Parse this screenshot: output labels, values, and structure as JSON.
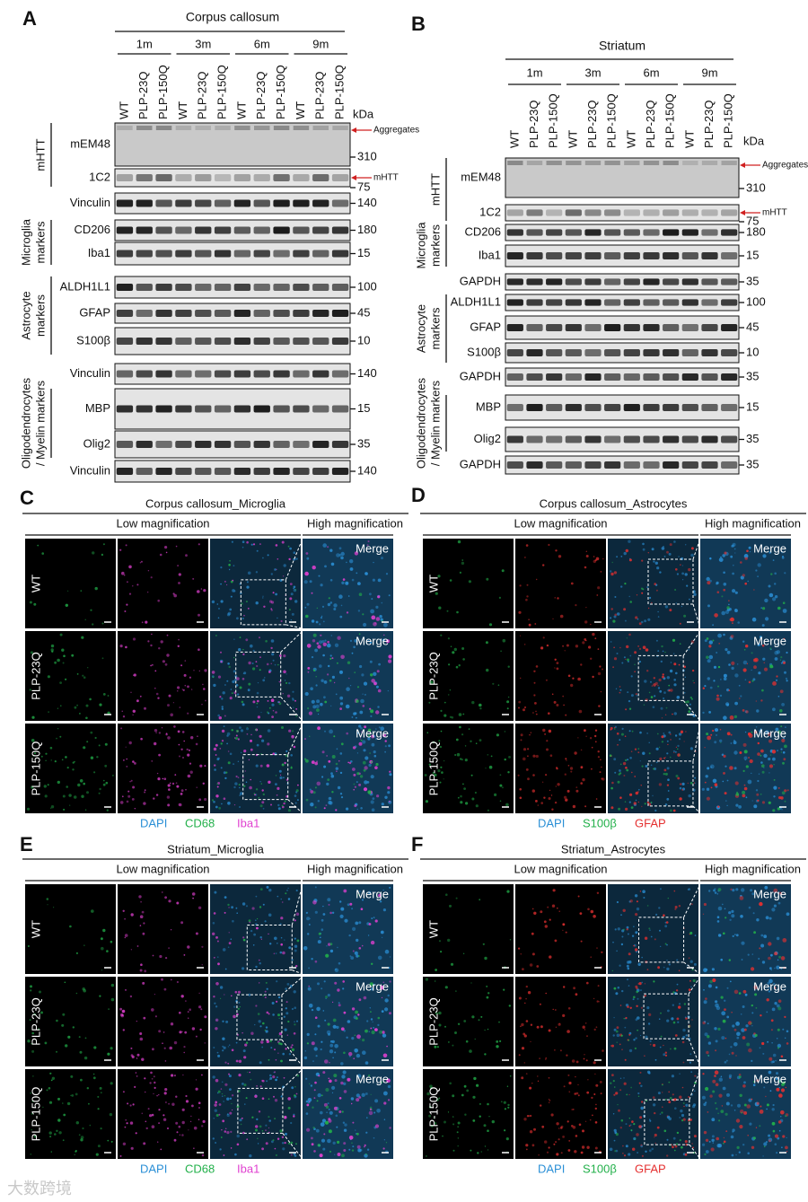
{
  "panel_a": {
    "letter": "A",
    "title": "Corpus callosum",
    "timepoints": [
      "1m",
      "3m",
      "6m",
      "9m"
    ],
    "genotypes": [
      "WT",
      "PLP-23Q",
      "PLP-150Q"
    ],
    "unit": "kDa",
    "blocks": [
      {
        "group": [
          "mHTT"
        ],
        "rows": [
          {
            "label": "mEM48",
            "marker": 310,
            "note": "Aggregates"
          },
          {
            "label": "1C2",
            "marker": 75,
            "note": "mHTT"
          }
        ]
      },
      {
        "rows": [
          {
            "label": "Vinculin",
            "marker": 140
          }
        ]
      },
      {
        "group": [
          "Microglia",
          "markers"
        ],
        "rows": [
          {
            "label": "CD206",
            "marker": 180
          },
          {
            "label": "Iba1",
            "marker": 15
          }
        ]
      },
      {
        "group": [
          "Astrocyte",
          "markers"
        ],
        "rows": [
          {
            "label": "ALDH1L1",
            "marker": 100
          },
          {
            "label": "GFAP",
            "marker": 45
          },
          {
            "label": "S100β",
            "marker": 10
          }
        ]
      },
      {
        "rows": [
          {
            "label": "Vinculin",
            "marker": 140
          }
        ]
      },
      {
        "group": [
          "Oligodendrocytes",
          "/ Myelin markers"
        ],
        "rows": [
          {
            "label": "MBP",
            "marker": 15
          },
          {
            "label": "Olig2",
            "marker": 35
          }
        ]
      },
      {
        "rows": [
          {
            "label": "Vinculin",
            "marker": 140
          }
        ]
      }
    ]
  },
  "panel_b": {
    "letter": "B",
    "title": "Striatum",
    "timepoints": [
      "1m",
      "3m",
      "6m",
      "9m"
    ],
    "genotypes": [
      "WT",
      "PLP-23Q",
      "PLP-150Q"
    ],
    "unit": "kDa",
    "blocks": [
      {
        "group": [
          "mHTT"
        ],
        "rows": [
          {
            "label": "mEM48",
            "marker": 310,
            "note": "Aggregates"
          },
          {
            "label": "1C2",
            "marker": 75,
            "note": "mHTT"
          }
        ]
      },
      {
        "group": [
          "Microglia",
          "markers"
        ],
        "rows": [
          {
            "label": "CD206",
            "marker": 180
          },
          {
            "label": "Iba1",
            "marker": 15
          }
        ]
      },
      {
        "rows": [
          {
            "label": "GAPDH",
            "marker": 35
          }
        ]
      },
      {
        "group": [
          "Astrocyte",
          "markers"
        ],
        "rows": [
          {
            "label": "ALDH1L1",
            "marker": 100
          },
          {
            "label": "GFAP",
            "marker": 45
          },
          {
            "label": "S100β",
            "marker": 10
          }
        ]
      },
      {
        "rows": [
          {
            "label": "GAPDH",
            "marker": 35
          }
        ]
      },
      {
        "group": [
          "Oligodendrocytes",
          "/ Myelin markers"
        ],
        "rows": [
          {
            "label": "MBP",
            "marker": 15
          },
          {
            "label": "Olig2",
            "marker": 35
          }
        ]
      },
      {
        "rows": [
          {
            "label": "GAPDH",
            "marker": 35
          }
        ]
      }
    ]
  },
  "panel_c": {
    "letter": "C",
    "title": "Corpus callosum_Microglia",
    "low_label": "Low magnification",
    "high_label": "High magnification",
    "rows": [
      "WT",
      "PLP-23Q",
      "PLP-150Q"
    ],
    "merge_label": "Merge",
    "legend": [
      {
        "name": "DAPI",
        "color": "#2a8fd6"
      },
      {
        "name": "CD68",
        "color": "#22b04a"
      },
      {
        "name": "Iba1",
        "color": "#e040d0"
      }
    ]
  },
  "panel_d": {
    "letter": "D",
    "title": "Corpus callosum_Astrocytes",
    "low_label": "Low magnification",
    "high_label": "High magnification",
    "rows": [
      "WT",
      "PLP-23Q",
      "PLP-150Q"
    ],
    "merge_label": "Merge",
    "legend": [
      {
        "name": "DAPI",
        "color": "#2a8fd6"
      },
      {
        "name": "S100β",
        "color": "#22b04a"
      },
      {
        "name": "GFAP",
        "color": "#e53030"
      }
    ]
  },
  "panel_e": {
    "letter": "E",
    "title": "Striatum_Microglia",
    "low_label": "Low magnification",
    "high_label": "High magnification",
    "rows": [
      "WT",
      "PLP-23Q",
      "PLP-150Q"
    ],
    "merge_label": "Merge",
    "legend": [
      {
        "name": "DAPI",
        "color": "#2a8fd6"
      },
      {
        "name": "CD68",
        "color": "#22b04a"
      },
      {
        "name": "Iba1",
        "color": "#e040d0"
      }
    ]
  },
  "panel_f": {
    "letter": "F",
    "title": "Striatum_Astrocytes",
    "low_label": "Low magnification",
    "high_label": "High magnification",
    "rows": [
      "WT",
      "PLP-23Q",
      "PLP-150Q"
    ],
    "merge_label": "Merge",
    "legend": [
      {
        "name": "DAPI",
        "color": "#2a8fd6"
      },
      {
        "name": "S100β",
        "color": "#22b04a"
      },
      {
        "name": "GFAP",
        "color": "#e53030"
      }
    ]
  },
  "watermark": "大数跨境"
}
